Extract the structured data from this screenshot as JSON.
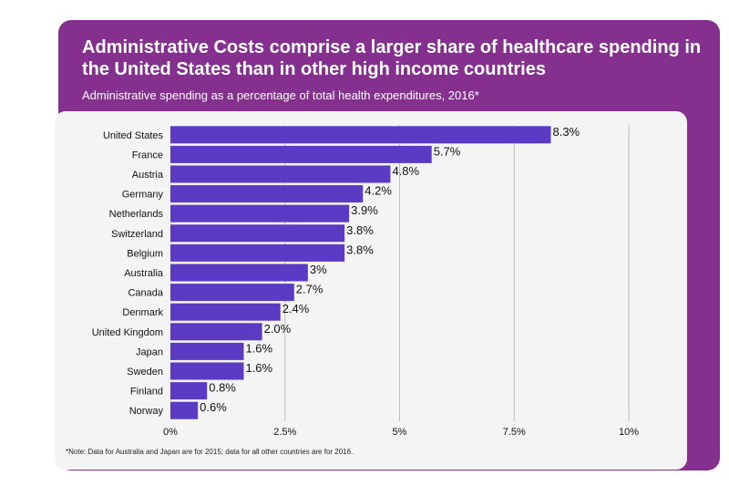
{
  "header": {
    "title": "Administrative Costs comprise a larger share of healthcare spending in the United States than in other high income countries",
    "subtitle": "Administrative spending as a percentage of total health expenditures, 2016*"
  },
  "footnote": "*Note: Data for Australia and Japan are for 2015; data for all other countries are for 2016.",
  "colors": {
    "banner": "#85308f",
    "bar": "#5b3bc4",
    "panel": "#f4f4f4",
    "grid": "#bdbdbd"
  },
  "chart_data": {
    "type": "bar",
    "orientation": "horizontal",
    "categories": [
      "United States",
      "France",
      "Austria",
      "Germany",
      "Netherlands",
      "Switzerland",
      "Belgium",
      "Australia",
      "Canada",
      "Denmark",
      "United Kingdom",
      "Japan",
      "Sweden",
      "Finland",
      "Norway"
    ],
    "values": [
      8.3,
      5.7,
      4.8,
      4.2,
      3.9,
      3.8,
      3.8,
      3,
      2.7,
      2.4,
      2.0,
      1.6,
      1.6,
      0.8,
      0.6
    ],
    "value_labels": [
      "8.3%",
      "5.7%",
      "4.8%",
      "4.2%",
      "3.9%",
      "3.8%",
      "3.8%",
      "3%",
      "2.7%",
      "2.4%",
      "2.0%",
      "1.6%",
      "1.6%",
      "0.8%",
      "0.6%"
    ],
    "xlim": [
      0,
      10
    ],
    "xticks": [
      0,
      2.5,
      5,
      7.5,
      10
    ],
    "xtick_labels": [
      "0%",
      "2.5%",
      "5%",
      "7.5%",
      "10%"
    ],
    "grid": true
  }
}
